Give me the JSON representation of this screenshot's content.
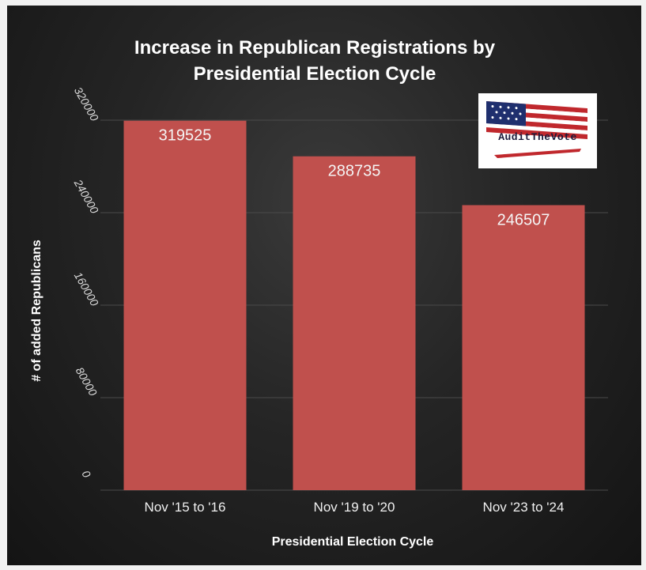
{
  "chart_data": {
    "type": "bar",
    "title_lines": [
      "Increase in Republican Registrations by",
      "Presidential Election Cycle"
    ],
    "categories": [
      "Nov '15 to '16",
      "Nov '19 to '20",
      "Nov '23 to '24"
    ],
    "values": [
      319525,
      288735,
      246507
    ],
    "value_labels": [
      "319525",
      "288735",
      "246507"
    ],
    "xlabel": "Presidential Election Cycle",
    "ylabel": "# of added Republicans",
    "ylim": [
      0,
      320000
    ],
    "yticks": [
      0,
      80000,
      160000,
      240000,
      320000
    ],
    "ytick_labels": [
      "0",
      "80000",
      "160000",
      "240000",
      "320000"
    ],
    "grid": true,
    "bar_color": "#c0504d",
    "background": "#1e1e1e"
  },
  "logo": {
    "text": "AuditTheVote",
    "icon": "american-flag-icon"
  }
}
